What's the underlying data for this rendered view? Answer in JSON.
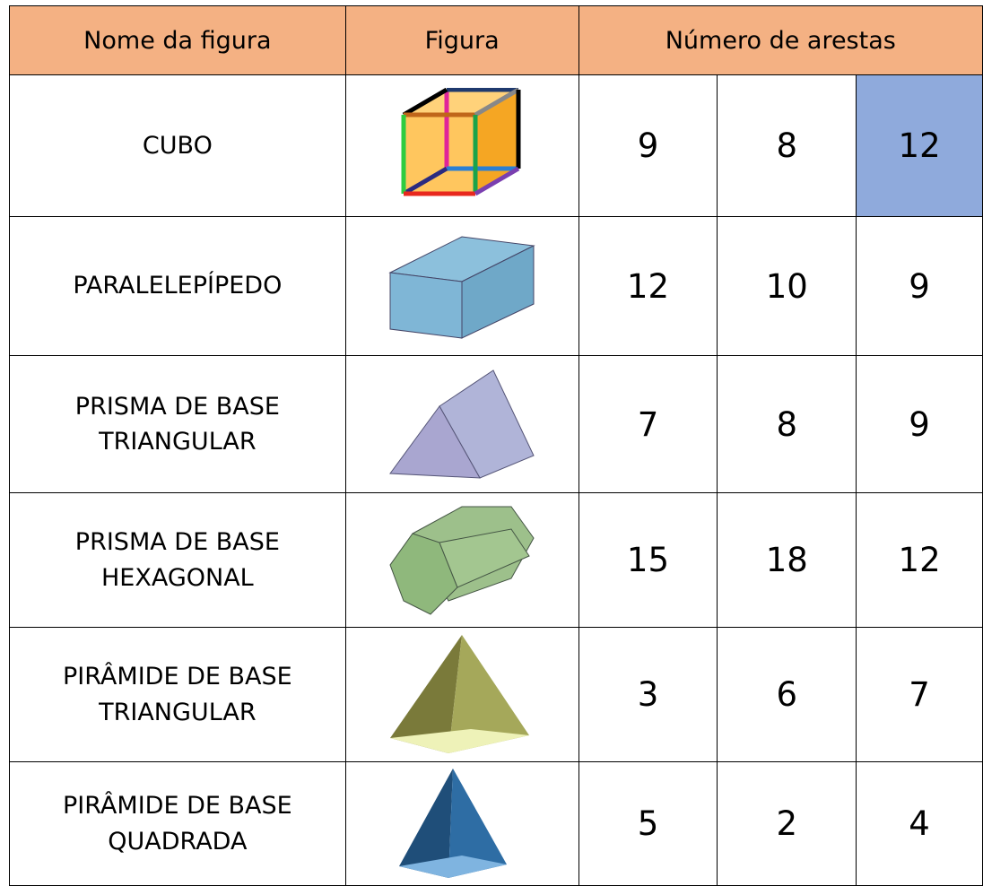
{
  "table": {
    "header": [
      "Nome da figura",
      "Figura",
      "Número de arestas"
    ],
    "rows": [
      {
        "name": "CUBO",
        "options": [
          9,
          8,
          12
        ]
      },
      {
        "name": "PARALELEPÍPEDO",
        "options": [
          12,
          10,
          9
        ]
      },
      {
        "name": "PRISMA DE BASE\nTRIANGULAR",
        "options": [
          7,
          8,
          9
        ]
      },
      {
        "name": "PRISMA DE BASE\nHEXAGONAL",
        "options": [
          15,
          18,
          12
        ]
      },
      {
        "name": "PIRÂMIDE DE BASE\nTRIANGULAR",
        "options": [
          3,
          6,
          7
        ]
      },
      {
        "name": "PIRÂMIDE DE BASE\nQUADRADA",
        "options": [
          5,
          2,
          4
        ]
      }
    ]
  }
}
